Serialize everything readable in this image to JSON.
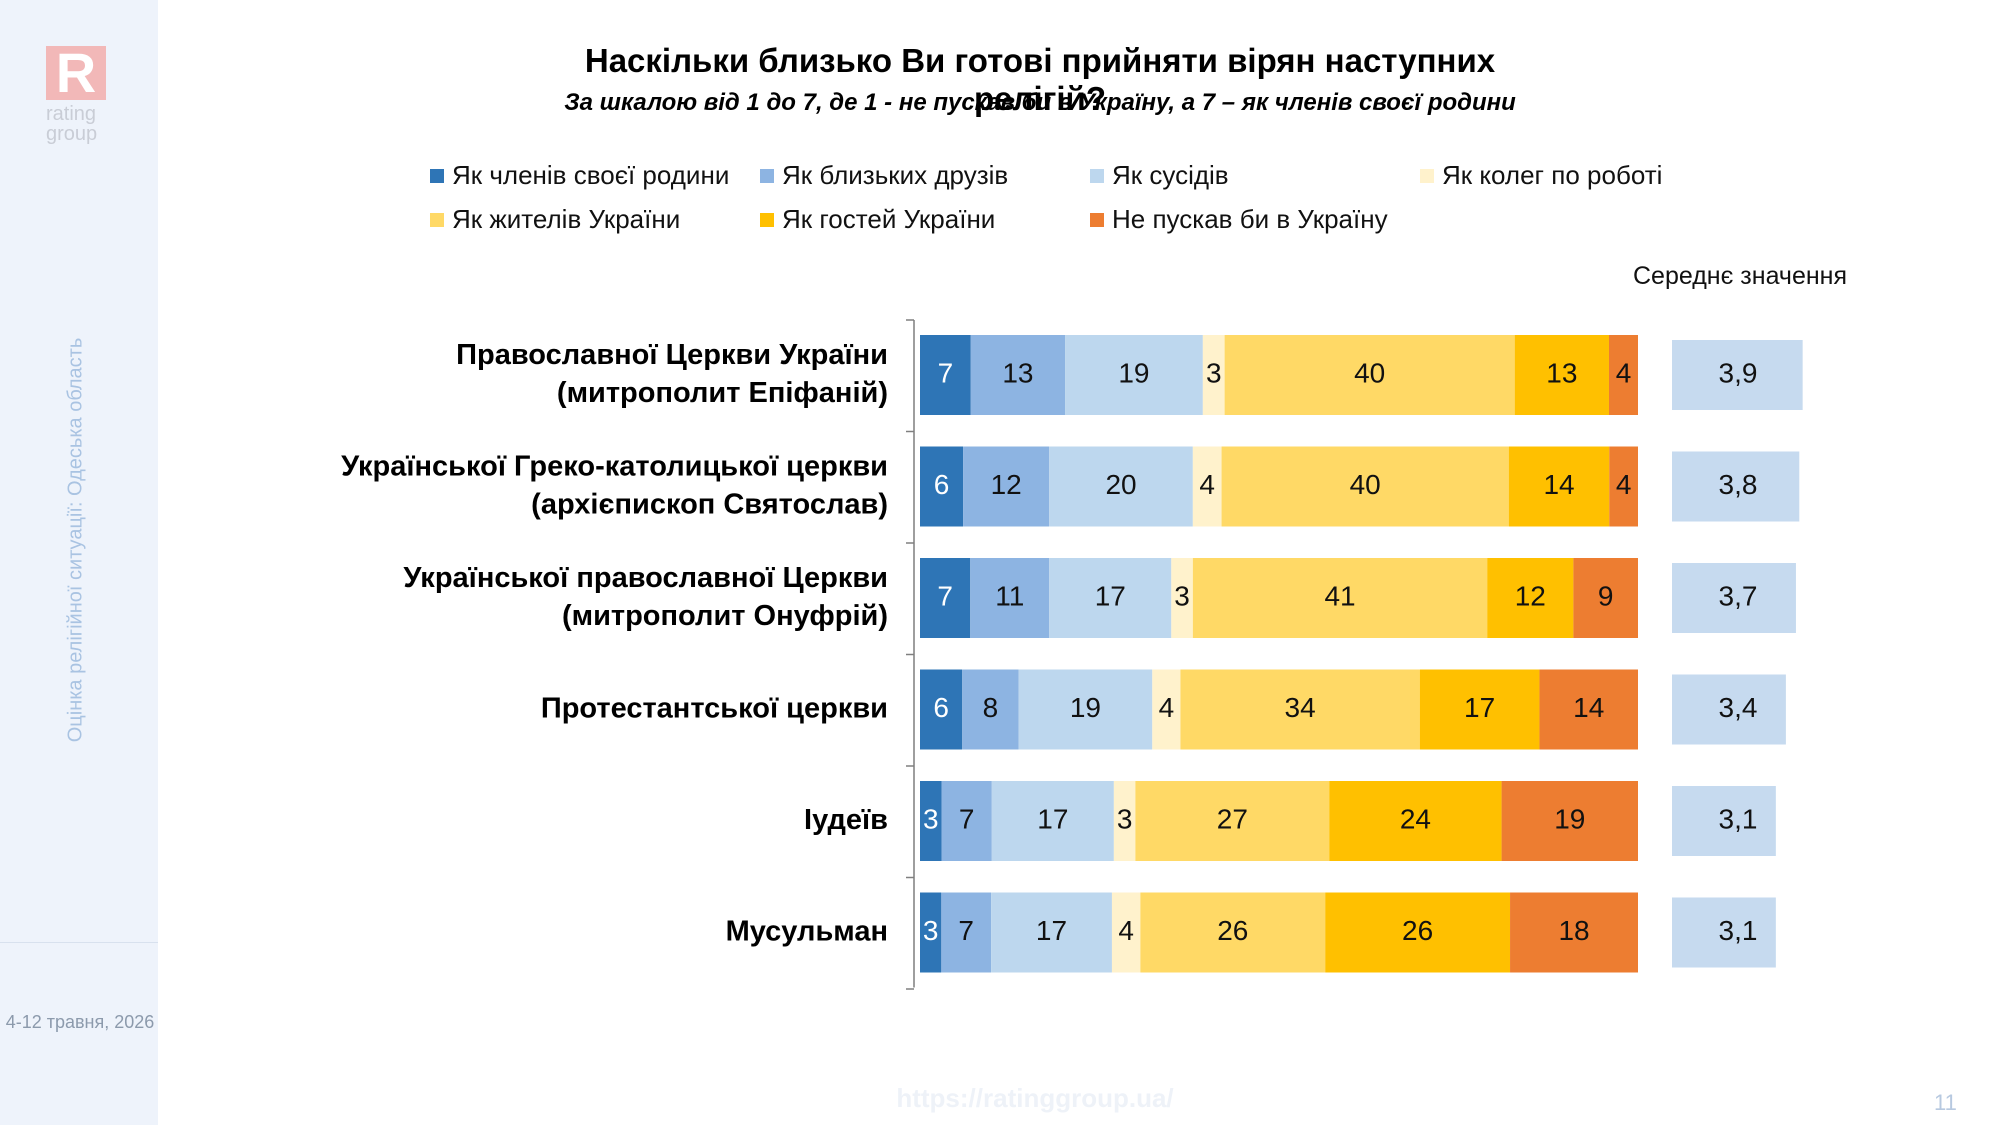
{
  "brand": {
    "logo_letter": "R",
    "logo_text": "rating group",
    "vertical_note": "Оцінка релігійної ситуації: Одеська область",
    "date": "4-12 травня, 2026",
    "url": "https://ratinggroup.ua/",
    "page_number": "11"
  },
  "header": {
    "title": "Наскільки близько Ви готові прийняти вірян наступних релігій?",
    "subtitle": "За шкалою від 1 до 7, де 1 - не пускав би в Україну, а 7 – як членів своєї родини"
  },
  "mean_header": "Середнє значення",
  "colors": {
    "accent_logo": "#f2b8b8",
    "sidebar_bg": "#eef3fb",
    "mean_box": "#c6daef"
  },
  "chart_data": {
    "type": "bar",
    "orientation": "horizontal-stacked-100",
    "title": "Наскільки близько Ви готові прийняти вірян наступних релігій?",
    "subtitle": "За шкалою від 1 до 7, де 1 - не пускав би в Україну, а 7 – як членів своєї родини",
    "legend_position": "top",
    "categories": [
      "Православної Церкви України (митрополит Епіфаній)",
      "Української Греко-католицької церкви (архієпископ Святослав)",
      "Української православної Церкви (митрополит Онуфрій)",
      "Протестантської церкви",
      "Іудеїв",
      "Мусульман"
    ],
    "series": [
      {
        "name": "Як членів своєї родини",
        "color": "#2e75b6",
        "label_color": "#ffffff",
        "values": [
          7,
          6,
          7,
          6,
          3,
          3
        ]
      },
      {
        "name": "Як близьких друзів",
        "color": "#8db4e2",
        "label_color": "#111111",
        "values": [
          13,
          12,
          11,
          8,
          7,
          7
        ]
      },
      {
        "name": "Як сусідів",
        "color": "#bdd7ee",
        "label_color": "#111111",
        "values": [
          19,
          20,
          17,
          19,
          17,
          17
        ]
      },
      {
        "name": "Як колег по роботі",
        "color": "#fff2cc",
        "label_color": "#111111",
        "values": [
          3,
          4,
          3,
          4,
          3,
          4
        ]
      },
      {
        "name": "Як жителів України",
        "color": "#ffd966",
        "label_color": "#111111",
        "values": [
          40,
          40,
          41,
          34,
          27,
          26
        ]
      },
      {
        "name": "Як гостей України",
        "color": "#ffc000",
        "label_color": "#111111",
        "values": [
          13,
          14,
          12,
          17,
          24,
          26
        ]
      },
      {
        "name": "Не пускав би в Україну",
        "color": "#ed7d31",
        "label_color": "#111111",
        "values": [
          4,
          4,
          9,
          14,
          19,
          18
        ]
      }
    ],
    "mean_values": {
      "name": "Середнє значення",
      "labels": [
        "3,9",
        "3,8",
        "3,7",
        "3,4",
        "3,1",
        "3,1"
      ],
      "values": [
        3.9,
        3.8,
        3.7,
        3.4,
        3.1,
        3.1
      ]
    },
    "xlim": [
      0,
      100
    ],
    "grid": false
  }
}
